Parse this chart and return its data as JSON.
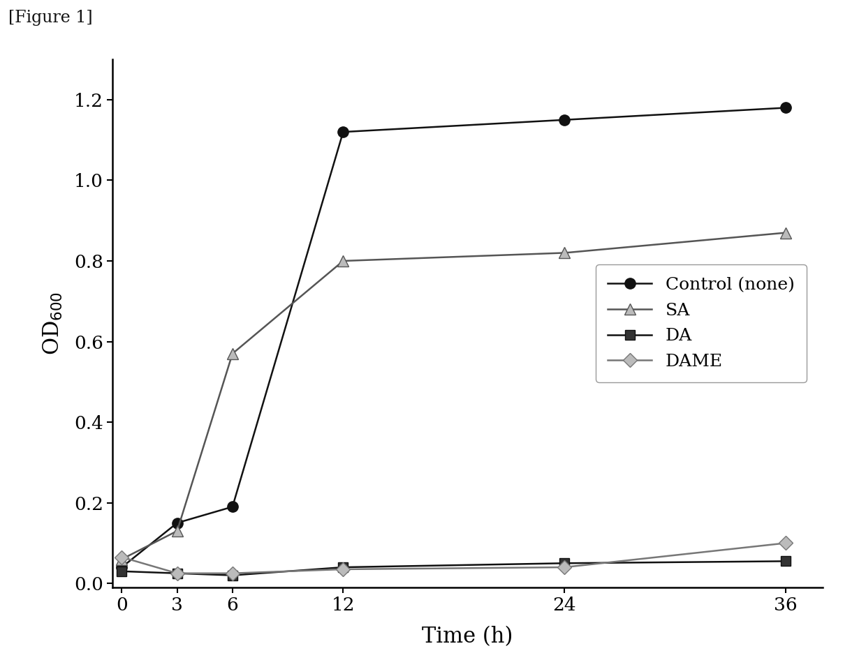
{
  "figure_label": "[Figure 1]",
  "xlabel": "Time (h)",
  "ylabel": "OD$_{600}$",
  "x": [
    0,
    3,
    6,
    12,
    24,
    36
  ],
  "series": [
    {
      "label": "Control (none)",
      "y": [
        0.04,
        0.15,
        0.19,
        1.12,
        1.15,
        1.18
      ],
      "color": "#111111",
      "marker": "o",
      "markersize": 11,
      "linewidth": 1.8,
      "markerfacecolor": "#111111",
      "markeredgecolor": "#111111"
    },
    {
      "label": "SA",
      "y": [
        0.06,
        0.13,
        0.57,
        0.8,
        0.82,
        0.87
      ],
      "color": "#555555",
      "marker": "^",
      "markersize": 11,
      "linewidth": 1.8,
      "markerfacecolor": "#bbbbbb",
      "markeredgecolor": "#555555"
    },
    {
      "label": "DA",
      "y": [
        0.03,
        0.025,
        0.02,
        0.04,
        0.05,
        0.055
      ],
      "color": "#111111",
      "marker": "s",
      "markersize": 10,
      "linewidth": 1.8,
      "markerfacecolor": "#333333",
      "markeredgecolor": "#111111"
    },
    {
      "label": "DAME",
      "y": [
        0.065,
        0.025,
        0.025,
        0.035,
        0.04,
        0.1
      ],
      "color": "#777777",
      "marker": "D",
      "markersize": 10,
      "linewidth": 1.8,
      "markerfacecolor": "#bbbbbb",
      "markeredgecolor": "#777777"
    }
  ],
  "xlim": [
    -0.5,
    38
  ],
  "ylim": [
    -0.01,
    1.3
  ],
  "xticks": [
    0,
    3,
    6,
    12,
    24,
    36
  ],
  "yticks": [
    0.0,
    0.2,
    0.4,
    0.6,
    0.8,
    1.0,
    1.2
  ],
  "background_color": "#ffffff"
}
